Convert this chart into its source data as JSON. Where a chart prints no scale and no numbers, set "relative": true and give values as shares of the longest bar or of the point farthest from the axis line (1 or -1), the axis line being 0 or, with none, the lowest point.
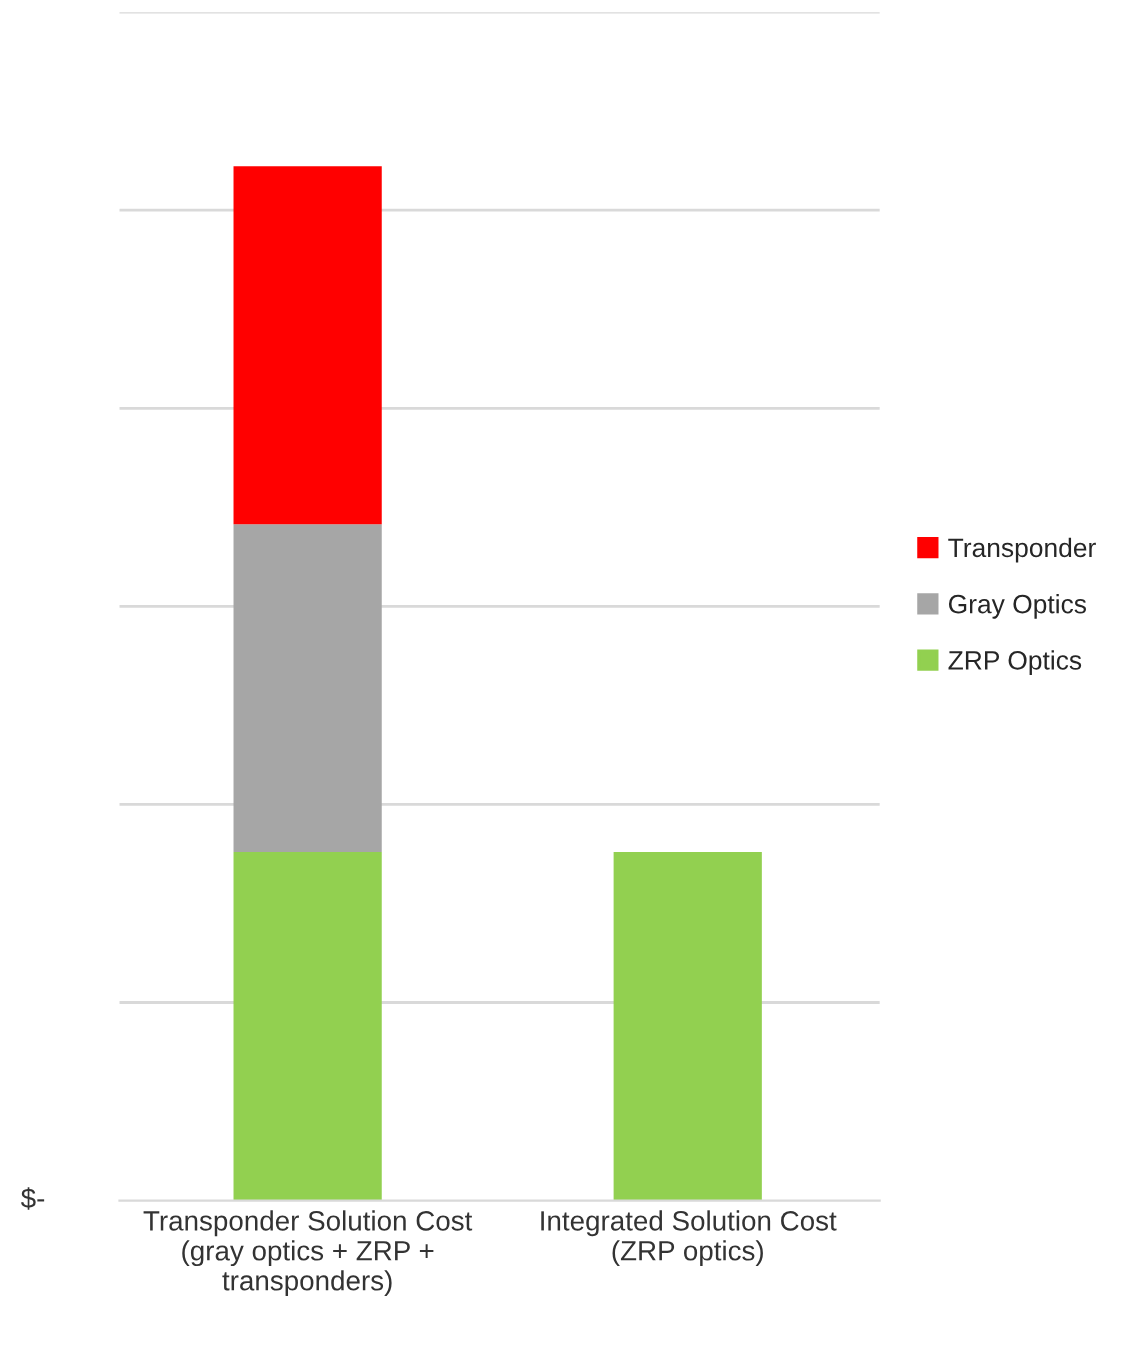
{
  "chart_data": {
    "type": "bar",
    "stacked": true,
    "relative": true,
    "categories": [
      "Transponder Solution Cost\n(gray optics + ZRP +\ntransponders)",
      "Integrated Solution Cost\n(ZRP optics)"
    ],
    "series": [
      {
        "name": "ZRP Optics",
        "color": "#92d050",
        "values": [
          0.337,
          0.337
        ]
      },
      {
        "name": "Gray Optics",
        "color": "#a6a6a6",
        "values": [
          0.317,
          null
        ]
      },
      {
        "name": "Transponder",
        "color": "#ff0000",
        "values": [
          0.346,
          null
        ]
      }
    ],
    "annotations": [
      "$-"
    ],
    "grid": "y",
    "legend": "right"
  }
}
